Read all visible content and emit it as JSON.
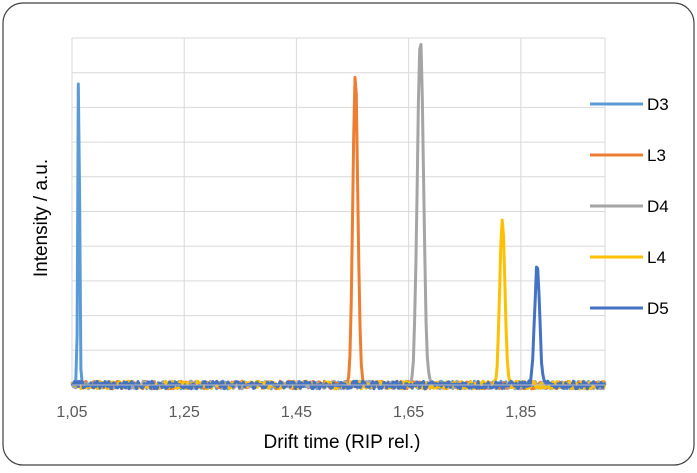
{
  "chart_data": {
    "type": "line",
    "title": "",
    "xlabel": "Drift time (RIP rel.)",
    "ylabel": "Intensity / a.u.",
    "xlim": [
      1.05,
      2.0
    ],
    "ylim": [
      0,
      10
    ],
    "x_ticks": [
      1.05,
      1.25,
      1.45,
      1.65,
      1.85
    ],
    "x_tick_labels": [
      "1,05",
      "1,25",
      "1,45",
      "1,65",
      "1,85"
    ],
    "grid": true,
    "legend_position": "right",
    "series": [
      {
        "name": "D3",
        "color": "#5B9BD5",
        "peak_x": 1.062,
        "peak_height": 9.6,
        "peak_width": 0.0015
      },
      {
        "name": "L3",
        "color": "#ED7D31",
        "peak_x": 1.555,
        "peak_height": 8.9,
        "peak_width": 0.0045
      },
      {
        "name": "D4",
        "color": "#A5A5A5",
        "peak_x": 1.671,
        "peak_height": 10.0,
        "peak_width": 0.0055
      },
      {
        "name": "L4",
        "color": "#FFC000",
        "peak_x": 1.817,
        "peak_height": 4.8,
        "peak_width": 0.0045
      },
      {
        "name": "D5",
        "color": "#4472C4",
        "peak_x": 1.879,
        "peak_height": 3.4,
        "peak_width": 0.0045
      }
    ]
  }
}
